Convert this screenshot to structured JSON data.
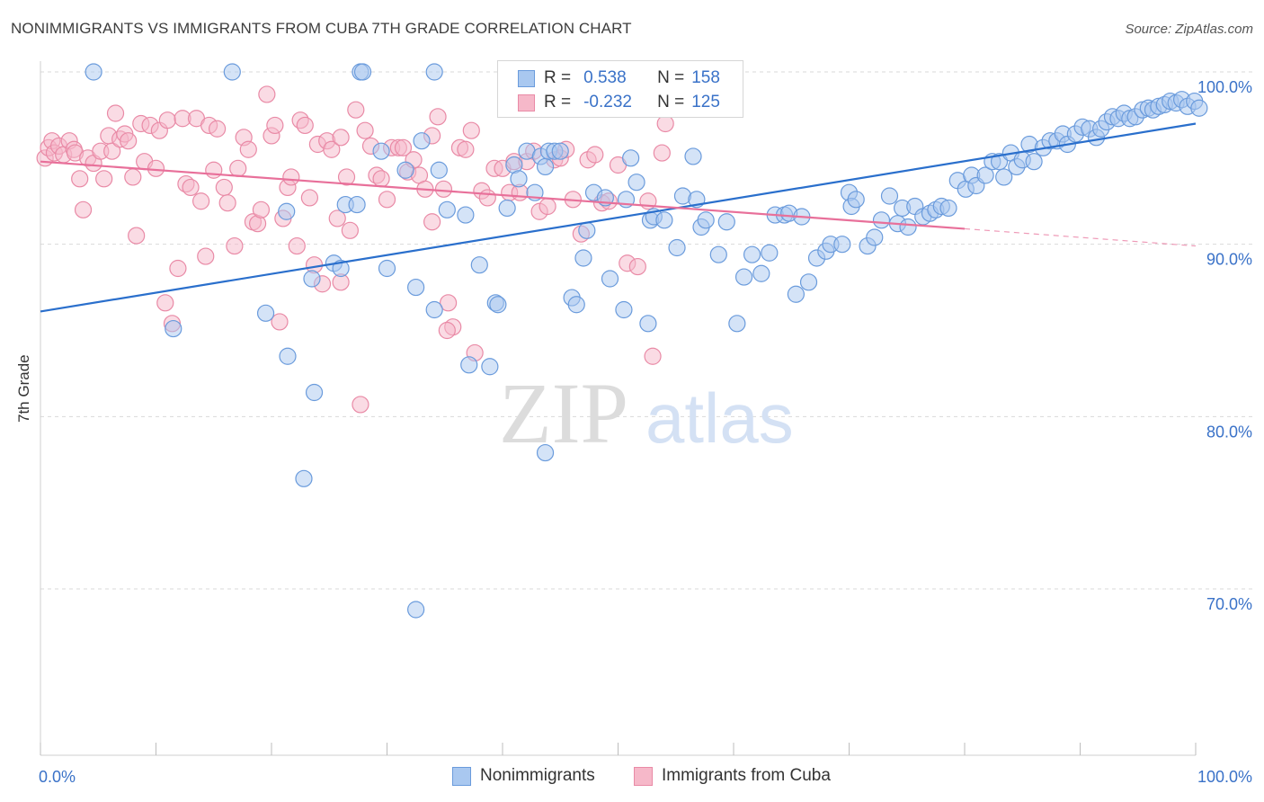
{
  "title": "NONIMMIGRANTS VS IMMIGRANTS FROM CUBA 7TH GRADE CORRELATION CHART",
  "source": "Source: ZipAtlas.com",
  "watermark": {
    "zip": "ZIP",
    "atlas": "atlas"
  },
  "legend": {
    "r_label": "R =",
    "n_label": "N =",
    "rows": [
      {
        "r": "0.538",
        "n": "158"
      },
      {
        "r": "-0.232",
        "n": "125"
      }
    ]
  },
  "colors": {
    "blue_fill": "#a9c8f0",
    "blue_stroke": "#6a9bdc",
    "blue_line": "#2a6fcc",
    "pink_fill": "#f6b8c9",
    "pink_stroke": "#e98aa6",
    "pink_line": "#e8709a",
    "tick_label": "#3a72c8",
    "grid": "#d9d9d9"
  },
  "chart_data": {
    "type": "scatter",
    "title": "NONIMMIGRANTS VS IMMIGRANTS FROM CUBA 7TH GRADE CORRELATION CHART",
    "xlabel": "",
    "ylabel": "7th Grade",
    "xlim": [
      0,
      100
    ],
    "ylim": [
      62,
      103
    ],
    "x_tick_labels": [
      "0.0%",
      "100.0%"
    ],
    "y_ticks": [
      70,
      80,
      90,
      100
    ],
    "y_tick_labels": [
      "70.0%",
      "80.0%",
      "90.0%",
      "100.0%"
    ],
    "grid": "horizontal dashed",
    "legend_placement": "top-center",
    "series": [
      {
        "name": "Nonimmigrants",
        "r": 0.538,
        "n": 158,
        "trend": {
          "x": [
            0,
            100
          ],
          "y": [
            86.1,
            97.0
          ]
        },
        "points": [
          [
            4.6,
            100.0
          ],
          [
            16.6,
            100.0
          ],
          [
            27.7,
            100.0
          ],
          [
            27.9,
            100.0
          ],
          [
            34.1,
            100.0
          ],
          [
            11.5,
            85.1
          ],
          [
            19.5,
            86.0
          ],
          [
            21.4,
            83.5
          ],
          [
            23.7,
            81.4
          ],
          [
            22.8,
            76.4
          ],
          [
            32.5,
            68.8
          ],
          [
            21.3,
            91.9
          ],
          [
            23.5,
            88.0
          ],
          [
            25.4,
            88.9
          ],
          [
            26.0,
            88.6
          ],
          [
            26.4,
            92.3
          ],
          [
            27.4,
            92.3
          ],
          [
            29.5,
            95.4
          ],
          [
            30.0,
            88.6
          ],
          [
            31.6,
            94.3
          ],
          [
            32.5,
            87.5
          ],
          [
            33.0,
            96.0
          ],
          [
            34.1,
            86.2
          ],
          [
            34.5,
            94.3
          ],
          [
            35.2,
            92.0
          ],
          [
            36.8,
            91.7
          ],
          [
            38.0,
            88.8
          ],
          [
            39.4,
            86.6
          ],
          [
            39.6,
            86.5
          ],
          [
            40.4,
            92.1
          ],
          [
            41.0,
            94.6
          ],
          [
            41.4,
            93.8
          ],
          [
            42.1,
            95.4
          ],
          [
            42.8,
            93.0
          ],
          [
            43.3,
            95.1
          ],
          [
            43.7,
            94.5
          ],
          [
            44.0,
            95.4
          ],
          [
            44.5,
            95.4
          ],
          [
            45.0,
            95.4
          ],
          [
            46.0,
            86.9
          ],
          [
            46.4,
            86.5
          ],
          [
            47.0,
            89.2
          ],
          [
            47.3,
            90.8
          ],
          [
            47.9,
            93.0
          ],
          [
            48.9,
            92.7
          ],
          [
            50.7,
            92.6
          ],
          [
            49.3,
            88.0
          ],
          [
            50.5,
            86.2
          ],
          [
            51.1,
            95.0
          ],
          [
            51.6,
            93.6
          ],
          [
            52.6,
            85.4
          ],
          [
            52.8,
            91.4
          ],
          [
            53.1,
            91.6
          ],
          [
            54.0,
            91.4
          ],
          [
            55.1,
            89.8
          ],
          [
            55.6,
            92.8
          ],
          [
            56.5,
            95.1
          ],
          [
            56.8,
            92.6
          ],
          [
            57.2,
            91.0
          ],
          [
            57.6,
            91.4
          ],
          [
            58.7,
            89.4
          ],
          [
            59.4,
            91.3
          ],
          [
            60.3,
            85.4
          ],
          [
            60.9,
            88.1
          ],
          [
            61.6,
            89.4
          ],
          [
            62.4,
            88.3
          ],
          [
            63.1,
            89.5
          ],
          [
            63.6,
            91.7
          ],
          [
            64.4,
            91.7
          ],
          [
            64.8,
            91.8
          ],
          [
            65.4,
            87.1
          ],
          [
            65.9,
            91.6
          ],
          [
            66.5,
            87.8
          ],
          [
            67.2,
            89.2
          ],
          [
            68.0,
            89.6
          ],
          [
            68.4,
            90.0
          ],
          [
            69.4,
            90.0
          ],
          [
            70.0,
            93.0
          ],
          [
            70.2,
            92.2
          ],
          [
            70.6,
            92.6
          ],
          [
            71.6,
            89.9
          ],
          [
            72.2,
            90.4
          ],
          [
            72.8,
            91.4
          ],
          [
            73.5,
            92.8
          ],
          [
            74.2,
            91.2
          ],
          [
            74.6,
            92.1
          ],
          [
            75.1,
            91.0
          ],
          [
            75.7,
            92.2
          ],
          [
            76.4,
            91.6
          ],
          [
            77.0,
            91.8
          ],
          [
            77.5,
            92.0
          ],
          [
            78.0,
            92.2
          ],
          [
            78.6,
            92.1
          ],
          [
            79.4,
            93.7
          ],
          [
            80.1,
            93.2
          ],
          [
            80.6,
            94.0
          ],
          [
            81.0,
            93.4
          ],
          [
            81.8,
            94.0
          ],
          [
            82.4,
            94.8
          ],
          [
            83.0,
            94.8
          ],
          [
            83.4,
            93.9
          ],
          [
            84.0,
            95.3
          ],
          [
            84.5,
            94.5
          ],
          [
            85.0,
            94.9
          ],
          [
            85.6,
            95.8
          ],
          [
            86.0,
            94.8
          ],
          [
            86.8,
            95.6
          ],
          [
            87.4,
            96.0
          ],
          [
            88.0,
            96.0
          ],
          [
            88.5,
            96.4
          ],
          [
            88.9,
            95.8
          ],
          [
            89.6,
            96.4
          ],
          [
            90.2,
            96.8
          ],
          [
            90.8,
            96.7
          ],
          [
            91.4,
            96.2
          ],
          [
            91.8,
            96.7
          ],
          [
            92.3,
            97.1
          ],
          [
            92.8,
            97.4
          ],
          [
            93.3,
            97.3
          ],
          [
            93.8,
            97.6
          ],
          [
            94.3,
            97.3
          ],
          [
            94.8,
            97.4
          ],
          [
            95.4,
            97.8
          ],
          [
            95.9,
            97.9
          ],
          [
            96.3,
            97.8
          ],
          [
            96.8,
            98.0
          ],
          [
            97.3,
            98.1
          ],
          [
            97.8,
            98.3
          ],
          [
            98.3,
            98.2
          ],
          [
            98.8,
            98.4
          ],
          [
            99.3,
            98.0
          ],
          [
            99.9,
            98.3
          ],
          [
            100.3,
            97.9
          ],
          [
            37.1,
            83.0
          ],
          [
            38.9,
            82.9
          ],
          [
            43.7,
            77.9
          ]
        ]
      },
      {
        "name": "Immigrants from Cuba",
        "r": -0.232,
        "n": 125,
        "trend": {
          "x": [
            0,
            80
          ],
          "y": [
            94.8,
            90.9
          ]
        },
        "trend_dashed_to": {
          "x": 100,
          "y": 89.9
        },
        "points": [
          [
            0.4,
            95.0
          ],
          [
            0.7,
            95.6
          ],
          [
            1.0,
            96.0
          ],
          [
            1.2,
            95.3
          ],
          [
            1.6,
            95.7
          ],
          [
            2.0,
            95.2
          ],
          [
            2.5,
            96.0
          ],
          [
            2.9,
            95.5
          ],
          [
            3.0,
            95.3
          ],
          [
            3.4,
            93.8
          ],
          [
            3.7,
            92.0
          ],
          [
            4.1,
            95.0
          ],
          [
            4.6,
            94.7
          ],
          [
            5.2,
            95.4
          ],
          [
            5.5,
            93.8
          ],
          [
            5.9,
            96.3
          ],
          [
            6.2,
            95.4
          ],
          [
            6.5,
            97.6
          ],
          [
            6.9,
            96.1
          ],
          [
            7.3,
            96.4
          ],
          [
            7.6,
            96.0
          ],
          [
            8.0,
            93.9
          ],
          [
            8.3,
            90.5
          ],
          [
            8.7,
            97.0
          ],
          [
            9.0,
            94.8
          ],
          [
            9.5,
            96.9
          ],
          [
            10.0,
            94.4
          ],
          [
            10.3,
            96.6
          ],
          [
            10.8,
            86.6
          ],
          [
            11.0,
            97.2
          ],
          [
            11.4,
            85.4
          ],
          [
            11.9,
            88.6
          ],
          [
            12.3,
            97.3
          ],
          [
            12.6,
            93.5
          ],
          [
            13.0,
            93.3
          ],
          [
            13.5,
            97.3
          ],
          [
            13.9,
            92.5
          ],
          [
            14.3,
            89.3
          ],
          [
            14.6,
            96.9
          ],
          [
            15.0,
            94.3
          ],
          [
            15.3,
            96.7
          ],
          [
            15.9,
            93.3
          ],
          [
            16.2,
            92.4
          ],
          [
            16.8,
            89.9
          ],
          [
            17.1,
            94.4
          ],
          [
            17.6,
            96.2
          ],
          [
            18.0,
            95.5
          ],
          [
            18.4,
            91.3
          ],
          [
            18.8,
            91.2
          ],
          [
            19.1,
            92.0
          ],
          [
            19.6,
            98.7
          ],
          [
            20.0,
            96.3
          ],
          [
            20.3,
            96.9
          ],
          [
            20.7,
            85.5
          ],
          [
            21.0,
            91.5
          ],
          [
            21.4,
            93.3
          ],
          [
            21.7,
            93.9
          ],
          [
            22.2,
            89.9
          ],
          [
            22.5,
            97.2
          ],
          [
            22.9,
            96.9
          ],
          [
            23.3,
            92.7
          ],
          [
            23.7,
            88.8
          ],
          [
            24.0,
            95.8
          ],
          [
            24.4,
            87.7
          ],
          [
            24.8,
            96.0
          ],
          [
            25.2,
            95.5
          ],
          [
            25.7,
            91.5
          ],
          [
            26.0,
            96.2
          ],
          [
            26.5,
            93.9
          ],
          [
            26.8,
            90.8
          ],
          [
            27.3,
            97.8
          ],
          [
            27.7,
            80.7
          ],
          [
            28.1,
            96.6
          ],
          [
            28.6,
            95.7
          ],
          [
            29.1,
            94.0
          ],
          [
            29.5,
            93.8
          ],
          [
            30.0,
            92.6
          ],
          [
            30.4,
            95.6
          ],
          [
            31.0,
            95.6
          ],
          [
            31.4,
            95.6
          ],
          [
            31.8,
            94.2
          ],
          [
            32.3,
            94.9
          ],
          [
            32.8,
            94.0
          ],
          [
            33.3,
            93.2
          ],
          [
            33.9,
            96.3
          ],
          [
            34.4,
            97.4
          ],
          [
            34.9,
            93.2
          ],
          [
            35.3,
            86.6
          ],
          [
            35.7,
            85.2
          ],
          [
            36.3,
            95.6
          ],
          [
            36.8,
            95.5
          ],
          [
            37.3,
            96.6
          ],
          [
            37.6,
            83.7
          ],
          [
            38.2,
            93.1
          ],
          [
            38.7,
            92.7
          ],
          [
            39.3,
            94.4
          ],
          [
            40.0,
            94.4
          ],
          [
            40.6,
            93.0
          ],
          [
            41.0,
            94.8
          ],
          [
            41.5,
            93.0
          ],
          [
            42.1,
            94.8
          ],
          [
            42.7,
            95.4
          ],
          [
            43.2,
            91.9
          ],
          [
            43.9,
            92.2
          ],
          [
            44.5,
            94.9
          ],
          [
            45.0,
            95.0
          ],
          [
            45.5,
            95.5
          ],
          [
            46.1,
            92.6
          ],
          [
            46.8,
            90.6
          ],
          [
            47.4,
            94.9
          ],
          [
            48.0,
            95.2
          ],
          [
            48.6,
            92.4
          ],
          [
            49.2,
            92.5
          ],
          [
            50.0,
            94.6
          ],
          [
            50.8,
            88.9
          ],
          [
            51.7,
            88.7
          ],
          [
            52.6,
            92.5
          ],
          [
            53.0,
            83.5
          ],
          [
            53.8,
            95.3
          ],
          [
            54.1,
            97.0
          ],
          [
            26.0,
            87.8
          ],
          [
            33.9,
            91.3
          ],
          [
            35.2,
            85.0
          ]
        ]
      }
    ]
  }
}
